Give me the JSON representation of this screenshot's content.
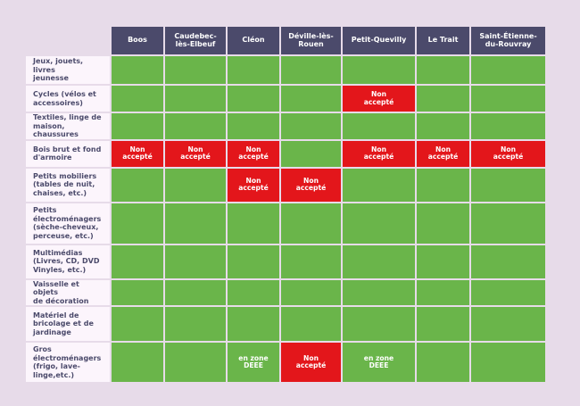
{
  "colors": {
    "header": "#4b4a6b",
    "accepted": "#6ab54a",
    "refused": "#e3161b",
    "label_bg": "#fcf5fc",
    "page_bg": "#e7dbe9"
  },
  "cities": [
    "Boos",
    "Caudebec-\nlès-Elbeuf",
    "Cléon",
    "Déville-lès-\nRouen",
    "Petit-Quevilly",
    "Le Trait",
    "Saint-Étienne-\ndu-Rouvray"
  ],
  "status_labels": {
    "ok": "",
    "no": "Non\naccepté",
    "deee": "en zone\nDEEE"
  },
  "rows": [
    {
      "label": "Jeux, jouets, livres\njeunesse",
      "status": [
        "ok",
        "ok",
        "ok",
        "ok",
        "ok",
        "ok",
        "ok"
      ]
    },
    {
      "label": "Cycles (vélos et\naccessoires)",
      "status": [
        "ok",
        "ok",
        "ok",
        "ok",
        "no",
        "ok",
        "ok"
      ]
    },
    {
      "label": "Textiles, linge de\nmaison, chaussures",
      "status": [
        "ok",
        "ok",
        "ok",
        "ok",
        "ok",
        "ok",
        "ok"
      ]
    },
    {
      "label": "Bois brut et fond\nd'armoire",
      "status": [
        "no",
        "no",
        "no",
        "ok",
        "no",
        "no",
        "no"
      ]
    },
    {
      "label": "Petits mobiliers\n(tables de nuit,\nchaises, etc.)",
      "status": [
        "ok",
        "ok",
        "no",
        "no",
        "ok",
        "ok",
        "ok"
      ]
    },
    {
      "label": "Petits\nélectroménagers\n(sèche-cheveux,\nperceuse, etc.)",
      "status": [
        "ok",
        "ok",
        "ok",
        "ok",
        "ok",
        "ok",
        "ok"
      ]
    },
    {
      "label": "Multimédias\n(Livres, CD, DVD\nVinyles, etc.)",
      "status": [
        "ok",
        "ok",
        "ok",
        "ok",
        "ok",
        "ok",
        "ok"
      ]
    },
    {
      "label": "Vaisselle et objets\nde décoration",
      "status": [
        "ok",
        "ok",
        "ok",
        "ok",
        "ok",
        "ok",
        "ok"
      ]
    },
    {
      "label": "Matériel de\nbricolage et de\njardinage",
      "status": [
        "ok",
        "ok",
        "ok",
        "ok",
        "ok",
        "ok",
        "ok"
      ]
    },
    {
      "label": "Gros\nélectroménagers\n(frigo, lave-\nlinge,etc.)",
      "status": [
        "ok",
        "ok",
        "deee",
        "no",
        "deee",
        "ok",
        "ok"
      ]
    }
  ]
}
